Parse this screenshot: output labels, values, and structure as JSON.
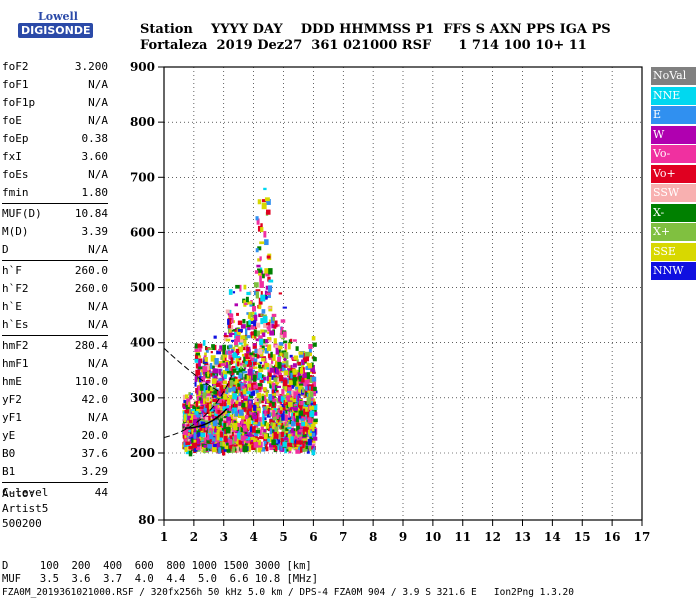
{
  "logo": {
    "line1": "Lowell",
    "line2": "DIGISONDE"
  },
  "header": {
    "line1": "Station    YYYY DAY    DDD HHMMSS P1  FFS S AXN PPS IGA PS",
    "line2": "Fortaleza  2019 Dez27  361 021000 RSF      1 714 100 10+ 11"
  },
  "params": [
    {
      "k": "foF2",
      "v": "3.200"
    },
    {
      "k": "foF1",
      "v": "N/A"
    },
    {
      "k": "foF1p",
      "v": "N/A"
    },
    {
      "k": "foE",
      "v": "N/A"
    },
    {
      "k": "foEp",
      "v": "0.38"
    },
    {
      "k": "fxI",
      "v": "3.60"
    },
    {
      "k": "foEs",
      "v": "N/A"
    },
    {
      "k": "fmin",
      "v": "1.80"
    }
  ],
  "params2": [
    {
      "k": "MUF(D)",
      "v": "10.84"
    },
    {
      "k": "M(D)",
      "v": "3.39"
    },
    {
      "k": "D",
      "v": "N/A"
    }
  ],
  "params3": [
    {
      "k": "h`F",
      "v": "260.0"
    },
    {
      "k": "h`F2",
      "v": "260.0"
    },
    {
      "k": "h`E",
      "v": "N/A"
    },
    {
      "k": "h`Es",
      "v": "N/A"
    }
  ],
  "params4": [
    {
      "k": "hmF2",
      "v": "280.4"
    },
    {
      "k": "hmF1",
      "v": "N/A"
    },
    {
      "k": "hmE",
      "v": "110.0"
    },
    {
      "k": "yF2",
      "v": "42.0"
    },
    {
      "k": "yF1",
      "v": "N/A"
    },
    {
      "k": "yE",
      "v": "20.0"
    },
    {
      "k": "B0",
      "v": "37.6"
    },
    {
      "k": "B1",
      "v": "3.29"
    }
  ],
  "params5": [
    {
      "k": "C-level",
      "v": "44"
    }
  ],
  "auto": {
    "l1": "Auto:",
    "l2": "Artist5",
    "l3": "500200"
  },
  "legend": [
    {
      "label": "NoVal",
      "color": "#808080"
    },
    {
      "label": "NNE",
      "color": "#00d8f0"
    },
    {
      "label": "E",
      "color": "#3090f0"
    },
    {
      "label": "W",
      "color": "#b000b0"
    },
    {
      "label": "Vo-",
      "color": "#f030a0"
    },
    {
      "label": "Vo+",
      "color": "#e00020"
    },
    {
      "label": "SSW",
      "color": "#f8b0b0"
    },
    {
      "label": "X-",
      "color": "#008000"
    },
    {
      "label": "X+",
      "color": "#80c040"
    },
    {
      "label": "SSE",
      "color": "#d8d800"
    },
    {
      "label": "NNW",
      "color": "#1010e0"
    }
  ],
  "bottom": {
    "l1": "D     100  200  400  600  800 1000 1500 3000 [km]",
    "l2": "MUF   3.5  3.6  3.7  4.0  4.4  5.0  6.6 10.8 [MHz]"
  },
  "footer": "FZA0M_2019361021000.RSF / 320fx256h 50 kHz 5.0 km / DPS-4 FZA0M 904 / 3.9 S 321.6 E   Ion2Png 1.3.20",
  "chart_data": {
    "type": "scatter",
    "x_ticks": [
      "1",
      "2",
      "3",
      "4",
      "5",
      "6",
      "7",
      "8",
      "9",
      "10",
      "11",
      "12",
      "13",
      "14",
      "15",
      "16",
      "17"
    ],
    "y_ticks": [
      "80",
      "200",
      "300",
      "400",
      "500",
      "600",
      "700",
      "800",
      "900"
    ],
    "xlim": [
      1,
      17
    ],
    "ylim_labels": [
      80,
      900
    ],
    "grid": true
  }
}
